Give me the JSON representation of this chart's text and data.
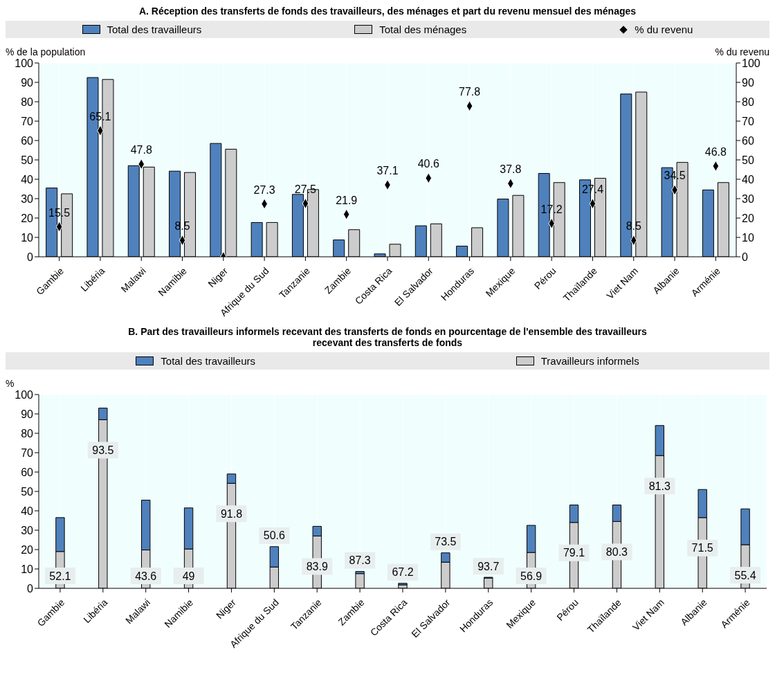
{
  "chart_data": [
    {
      "type": "bar",
      "title": "A. Réception des transferts de fonds des travailleurs, des ménages et part du revenu mensuel des ménages",
      "ylabel": "% de la population",
      "y2label": "% du revenu",
      "categories": [
        "Gambie",
        "Libéria",
        "Malawi",
        "Namibie",
        "Niger",
        "Afrique du Sud",
        "Tanzanie",
        "Zambie",
        "Costa Rica",
        "El Salvador",
        "Honduras",
        "Mexique",
        "Pérou",
        "Thaïlande",
        "Viet Nam",
        "Albanie",
        "Arménie"
      ],
      "series": [
        {
          "name": "Total des travailleurs",
          "color": "#4f81bd",
          "values": [
            35.5,
            92.5,
            47,
            44.2,
            58.5,
            17.7,
            32.2,
            8.7,
            1.5,
            16,
            5.5,
            29.8,
            43,
            39.7,
            84,
            46,
            34.5
          ]
        },
        {
          "name": "Total des ménages",
          "color": "#cccccc",
          "values": [
            32.5,
            91.5,
            46.3,
            43.5,
            55.5,
            17.7,
            34.7,
            14,
            6.5,
            17,
            15,
            31.7,
            38.3,
            40.5,
            85,
            48.7,
            38.3
          ]
        },
        {
          "name": "% du revenu",
          "type": "scatter",
          "axis": "y2",
          "color": "#000000",
          "marker": "diamond",
          "values": [
            15.5,
            65.1,
            47.8,
            8.5,
            0,
            27.3,
            27.5,
            21.9,
            37.1,
            40.6,
            77.8,
            37.8,
            17.2,
            27.4,
            8.5,
            34.5,
            46.8
          ],
          "value_labels": [
            "15.5",
            "65.1",
            "47.8",
            "8.5",
            null,
            "27.3",
            "27.5",
            "21.9",
            "37.1",
            "40.6",
            "77.8",
            "37.8",
            "17.2",
            "27.4",
            "8.5",
            "34.5",
            "46.8"
          ]
        }
      ],
      "ylim": [
        0,
        100
      ],
      "yticks": [
        0,
        10,
        20,
        30,
        40,
        50,
        60,
        70,
        80,
        90,
        100
      ],
      "y2lim": [
        0,
        100
      ],
      "y2ticks": [
        0,
        10,
        20,
        30,
        40,
        50,
        60,
        70,
        80,
        90,
        100
      ],
      "grid": true,
      "legend": "top"
    },
    {
      "type": "bar",
      "stacked": true,
      "title": "B. Part des travailleurs informels recevant des transferts de fonds en pourcentage de l'ensemble des travailleurs recevant des transferts de fonds",
      "ylabel": "%",
      "categories": [
        "Gambie",
        "Libéria",
        "Malawi",
        "Namibie",
        "Niger",
        "Afrique du Sud",
        "Tanzanie",
        "Zambie",
        "Costa Rica",
        "El Salvador",
        "Honduras",
        "Mexique",
        "Pérou",
        "Thaïlande",
        "Viet Nam",
        "Albanie",
        "Arménie"
      ],
      "series": [
        {
          "name": "Travailleurs informels",
          "color": "#cccccc",
          "values": [
            19,
            87,
            19.8,
            20.3,
            54.2,
            11,
            27,
            7.6,
            1.8,
            13.5,
            5.3,
            18.5,
            34,
            34.5,
            68.5,
            36.5,
            22.5
          ]
        },
        {
          "name": "Total des travailleurs",
          "color": "#4f81bd",
          "values": [
            17.5,
            6,
            25.7,
            21.2,
            4.8,
            10.5,
            5,
            1.1,
            0.8,
            4.8,
            0.4,
            14,
            9,
            8.5,
            15.5,
            14.5,
            18.5
          ]
        }
      ],
      "annotations": [
        {
          "text": "52.1",
          "x": "Gambie",
          "y": 19
        },
        {
          "text": "93.5",
          "x": "Libéria",
          "y": 87
        },
        {
          "text": "43.6",
          "x": "Malawi",
          "y": 19.8
        },
        {
          "text": "49",
          "x": "Namibie",
          "y": 20.3
        },
        {
          "text": "91.8",
          "x": "Niger",
          "y": 54.2
        },
        {
          "text": "50.6",
          "x": "Afrique du Sud",
          "y": 11
        },
        {
          "text": "83.9",
          "x": "Tanzanie",
          "y": 27
        },
        {
          "text": "87.3",
          "x": "Zambie",
          "y": 7.6
        },
        {
          "text": "67.2",
          "x": "Costa Rica",
          "y": 1.8
        },
        {
          "text": "73.5",
          "x": "El Salvador",
          "y": 13.5
        },
        {
          "text": "93.7",
          "x": "Honduras",
          "y": 5.3
        },
        {
          "text": "56.9",
          "x": "Mexique",
          "y": 18.5
        },
        {
          "text": "79.1",
          "x": "Pérou",
          "y": 34
        },
        {
          "text": "80.3",
          "x": "Thaïlande",
          "y": 34.5
        },
        {
          "text": "81.3",
          "x": "Viet Nam",
          "y": 68.5
        },
        {
          "text": "71.5",
          "x": "Albanie",
          "y": 36.5
        },
        {
          "text": "55.4",
          "x": "Arménie",
          "y": 22.5
        }
      ],
      "ylim": [
        0,
        100
      ],
      "yticks": [
        0,
        10,
        20,
        30,
        40,
        50,
        60,
        70,
        80,
        90,
        100
      ],
      "grid": true,
      "legend": "top"
    }
  ]
}
